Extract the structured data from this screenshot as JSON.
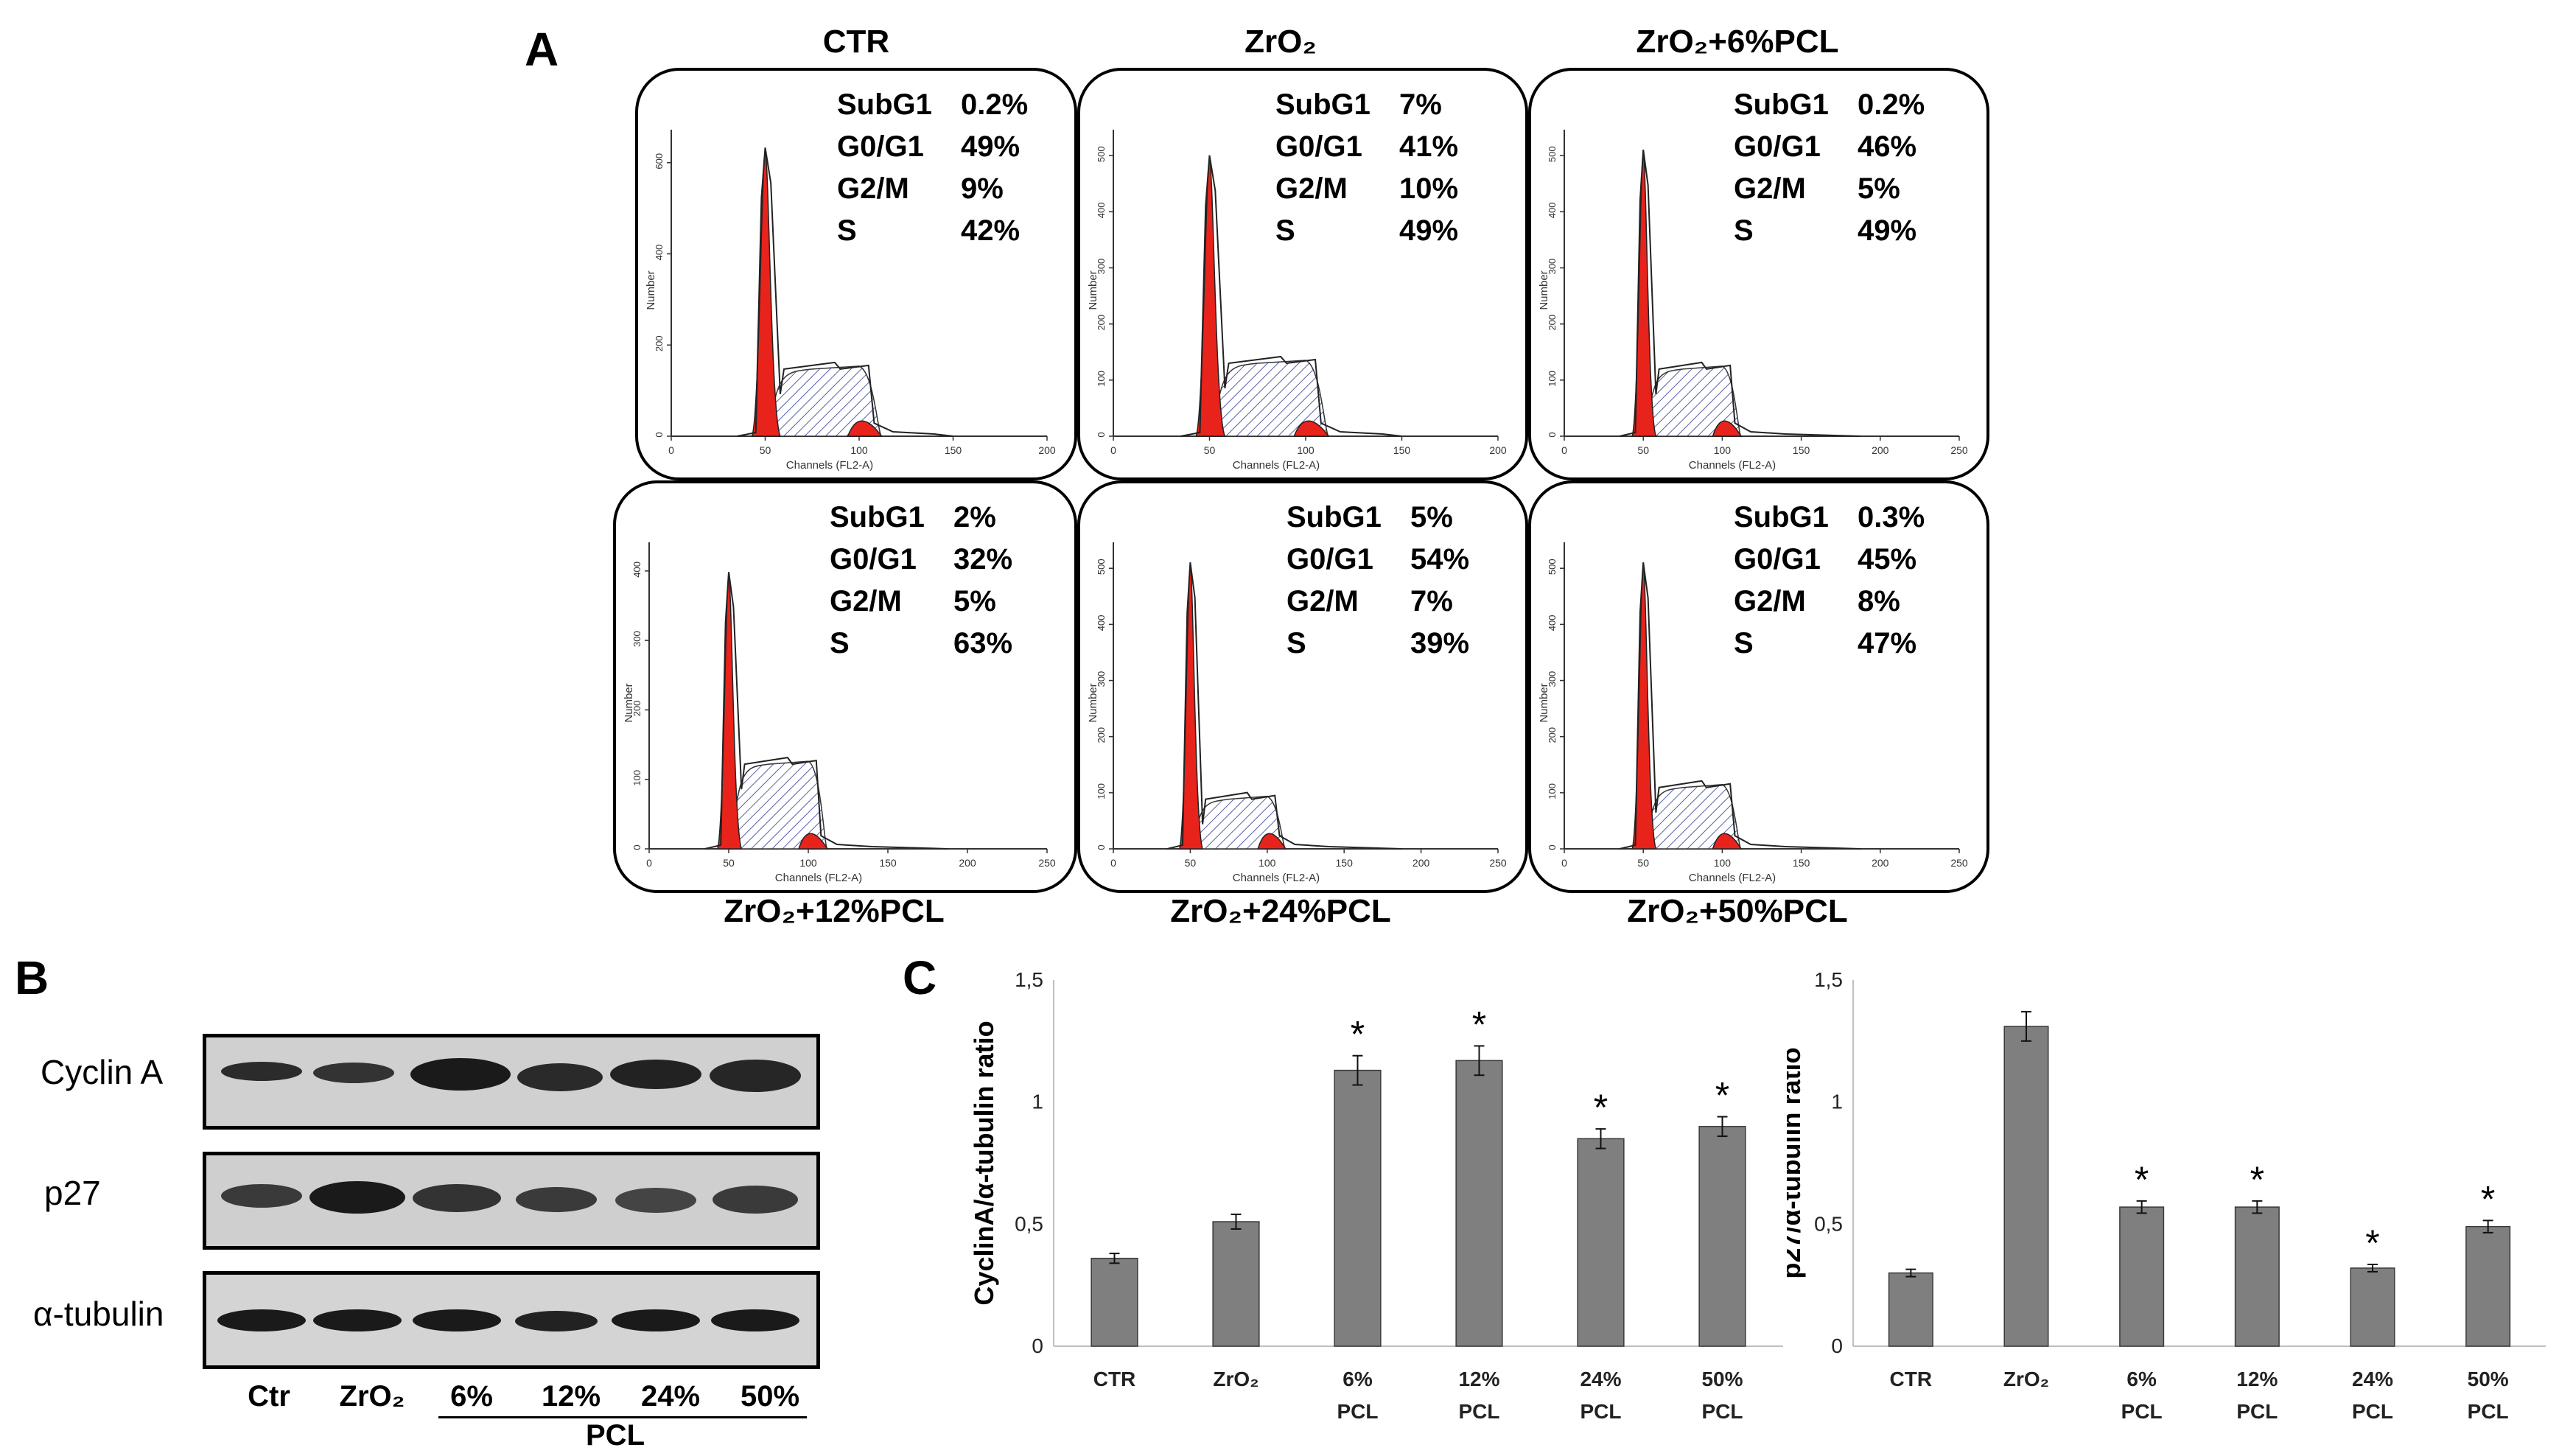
{
  "panel_labels": {
    "a": "A",
    "b": "B",
    "c": "C"
  },
  "flow_cytometry": {
    "axis": {
      "x_label": "Channels (FL2-A)",
      "y_label": "Number"
    },
    "panels": [
      {
        "title": "CTR",
        "stats": [
          {
            "phase": "SubG1",
            "value": "0.2%"
          },
          {
            "phase": "G0/G1",
            "value": "49%"
          },
          {
            "phase": "G2/M",
            "value": "9%"
          },
          {
            "phase": "S",
            "value": "42%"
          }
        ],
        "x_ticks": [
          "0",
          "50",
          "100",
          "150",
          "200"
        ],
        "y_ticks": [
          "0",
          "200",
          "400",
          "600"
        ],
        "x_max": 200,
        "y_max": 640,
        "peak": 620,
        "s_level": 0.22
      },
      {
        "title": "ZrO₂",
        "stats": [
          {
            "phase": "SubG1",
            "value": "7%"
          },
          {
            "phase": "G0/G1",
            "value": "41%"
          },
          {
            "phase": "G2/M",
            "value": "10%"
          },
          {
            "phase": "S",
            "value": "49%"
          }
        ],
        "x_ticks": [
          "0",
          "50",
          "100",
          "150",
          "200"
        ],
        "y_ticks": [
          "0",
          "100",
          "200",
          "300",
          "400",
          "500"
        ],
        "x_max": 200,
        "y_max": 520,
        "peak": 490,
        "s_level": 0.24
      },
      {
        "title": "ZrO₂+6%PCL",
        "stats": [
          {
            "phase": "SubG1",
            "value": "0.2%"
          },
          {
            "phase": "G0/G1",
            "value": "46%"
          },
          {
            "phase": "G2/M",
            "value": "5%"
          },
          {
            "phase": "S",
            "value": "49%"
          }
        ],
        "x_ticks": [
          "0",
          "50",
          "100",
          "150",
          "200",
          "250"
        ],
        "y_ticks": [
          "0",
          "100",
          "200",
          "300",
          "400",
          "500"
        ],
        "x_max": 250,
        "y_max": 520,
        "peak": 500,
        "s_level": 0.22
      },
      {
        "title": "ZrO₂+12%PCL",
        "stats": [
          {
            "phase": "SubG1",
            "value": "2%"
          },
          {
            "phase": "G0/G1",
            "value": "32%"
          },
          {
            "phase": "G2/M",
            "value": "5%"
          },
          {
            "phase": "S",
            "value": "63%"
          }
        ],
        "x_ticks": [
          "0",
          "50",
          "100",
          "150",
          "200",
          "250"
        ],
        "y_ticks": [
          "0",
          "100",
          "200",
          "300",
          "400"
        ],
        "x_max": 250,
        "y_max": 420,
        "peak": 390,
        "s_level": 0.28
      },
      {
        "title": "ZrO₂+24%PCL",
        "stats": [
          {
            "phase": "SubG1",
            "value": "5%"
          },
          {
            "phase": "G0/G1",
            "value": "54%"
          },
          {
            "phase": "G2/M",
            "value": "7%"
          },
          {
            "phase": "S",
            "value": "39%"
          }
        ],
        "x_ticks": [
          "0",
          "50",
          "100",
          "150",
          "200",
          "250"
        ],
        "y_ticks": [
          "0",
          "100",
          "200",
          "300",
          "400",
          "500"
        ],
        "x_max": 250,
        "y_max": 520,
        "peak": 500,
        "s_level": 0.16
      },
      {
        "title": "ZrO₂+50%PCL",
        "stats": [
          {
            "phase": "SubG1",
            "value": "0.3%"
          },
          {
            "phase": "G0/G1",
            "value": "45%"
          },
          {
            "phase": "G2/M",
            "value": "8%"
          },
          {
            "phase": "S",
            "value": "47%"
          }
        ],
        "x_ticks": [
          "0",
          "50",
          "100",
          "150",
          "200",
          "250"
        ],
        "y_ticks": [
          "0",
          "100",
          "200",
          "300",
          "400",
          "500"
        ],
        "x_max": 250,
        "y_max": 520,
        "peak": 500,
        "s_level": 0.2
      }
    ]
  },
  "western_blot": {
    "rows": [
      "Cyclin A",
      "p27",
      "α-tubulin"
    ],
    "lanes": [
      "Ctr",
      "ZrO₂",
      "6%",
      "12%",
      "24%",
      "50%"
    ],
    "group_label": "PCL"
  },
  "chart_data": [
    {
      "type": "bar",
      "ylabel": "CyclinA/α-tubulin ratio",
      "categories": [
        "CTR",
        "ZrO₂",
        "6% PCL",
        "12% PCL",
        "24% PCL",
        "50% PCL"
      ],
      "values": [
        0.36,
        0.51,
        1.13,
        1.17,
        0.85,
        0.9
      ],
      "errors": [
        0.02,
        0.03,
        0.06,
        0.06,
        0.04,
        0.04
      ],
      "significant": [
        false,
        false,
        true,
        true,
        true,
        true
      ],
      "ylim": [
        0,
        1.5
      ],
      "yticks": [
        "0",
        "0,5",
        "1",
        "1,5"
      ],
      "ytick_values": [
        0,
        0.5,
        1,
        1.5
      ],
      "marker": "*"
    },
    {
      "type": "bar",
      "ylabel": "p27/α-tubulin ratio",
      "categories": [
        "CTR",
        "ZrO₂",
        "6% PCL",
        "12% PCL",
        "24% PCL",
        "50% PCL"
      ],
      "values": [
        0.3,
        1.31,
        0.57,
        0.57,
        0.32,
        0.49
      ],
      "errors": [
        0.015,
        0.06,
        0.025,
        0.025,
        0.015,
        0.025
      ],
      "significant": [
        false,
        false,
        true,
        true,
        true,
        true
      ],
      "ylim": [
        0,
        1.5
      ],
      "yticks": [
        "0",
        "0,5",
        "1",
        "1,5"
      ],
      "ytick_values": [
        0,
        0.5,
        1,
        1.5
      ],
      "marker": "*"
    }
  ]
}
